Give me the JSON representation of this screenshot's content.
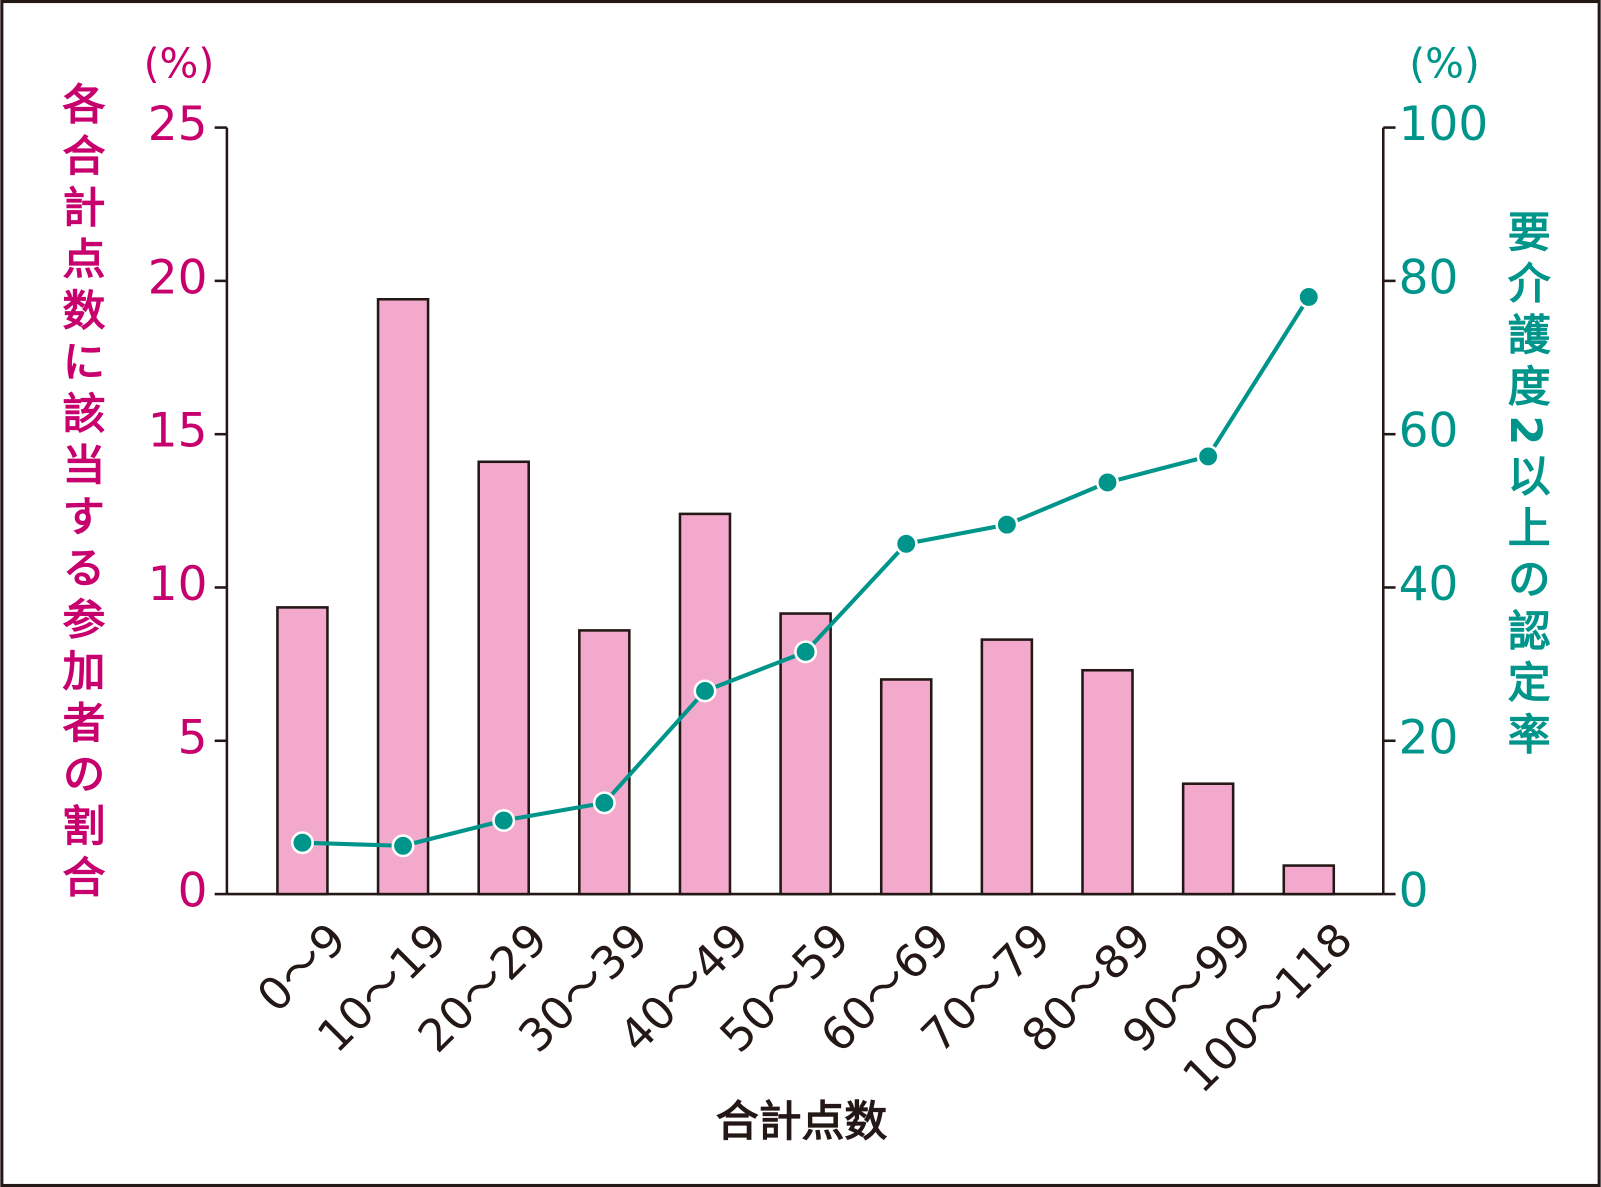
{
  "chart_data": {
    "type": "bar",
    "x_label": "合計点数",
    "y_label": "各合計点数に該当する参加者の割合",
    "y_unit": "(%)",
    "y2_label": "要介護度2以上の認定率",
    "y2_unit": "(%)",
    "categories": [
      "0〜9",
      "10〜19",
      "20〜29",
      "30〜39",
      "40〜49",
      "50〜59",
      "60〜69",
      "70〜79",
      "80〜89",
      "90〜99",
      "100〜118"
    ],
    "series": [
      {
        "type": "bar",
        "color": "#f2a9cb",
        "axis": "y",
        "values": [
          9.35,
          19.4,
          14.1,
          8.6,
          12.4,
          9.15,
          7.0,
          8.3,
          7.3,
          3.6,
          0.93
        ]
      },
      {
        "type": "line",
        "color": "#00958a",
        "axis": "y2",
        "values": [
          6.7,
          6.3,
          9.6,
          11.9,
          26.5,
          31.6,
          45.7,
          48.2,
          53.7,
          57.1,
          77.9
        ]
      }
    ],
    "y_color": "#c8006e",
    "ylim": [
      0,
      25
    ],
    "yticks": [
      0,
      5,
      10,
      15,
      20,
      25
    ],
    "y2lim": [
      0,
      100
    ],
    "y2ticks": [
      0,
      20,
      40,
      60,
      80,
      100
    ]
  }
}
